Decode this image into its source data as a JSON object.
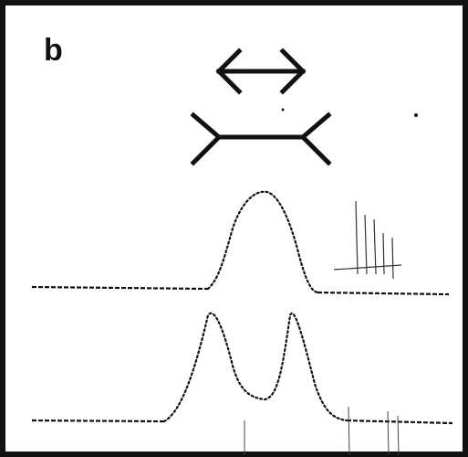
{
  "panel_label": "b"
}
